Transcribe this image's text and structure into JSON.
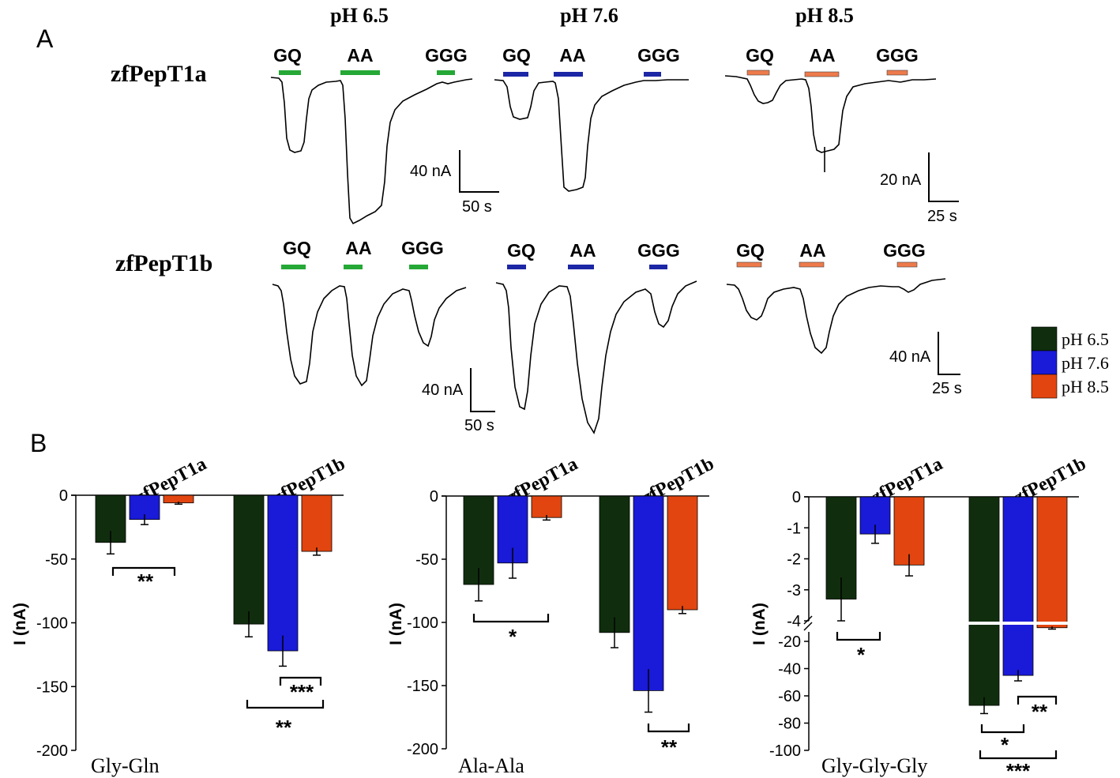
{
  "panel_a": {
    "label": "A",
    "ph_headers": [
      "pH 6.5",
      "pH 7.6",
      "pH 8.5"
    ],
    "rows": [
      {
        "name": "zfPepT1a",
        "groups": [
          {
            "ph": "pH 6.5",
            "peptides": [
              "GQ",
              "AA",
              "GGG"
            ],
            "scale_current": "40 nA",
            "scale_time": "50 s"
          },
          {
            "ph": "pH 7.6",
            "peptides": [
              "GQ",
              "AA",
              "GGG"
            ]
          },
          {
            "ph": "pH 8.5",
            "peptides": [
              "GQ",
              "AA",
              "GGG"
            ],
            "scale_current": "20 nA",
            "scale_time": "25 s"
          }
        ]
      },
      {
        "name": "zfPepT1b",
        "groups": [
          {
            "ph": "pH 6.5",
            "peptides": [
              "GQ",
              "AA",
              "GGG"
            ],
            "scale_current": "40 nA",
            "scale_time": "50 s"
          },
          {
            "ph": "pH 7.6",
            "peptides": [
              "GQ",
              "AA",
              "GGG"
            ]
          },
          {
            "ph": "pH 8.5",
            "peptides": [
              "GQ",
              "AA",
              "GGG"
            ],
            "scale_current": "40 nA",
            "scale_time": "25 s"
          }
        ]
      }
    ]
  },
  "legend": {
    "entries": [
      {
        "label": "pH 6.5",
        "color": "#102e0e"
      },
      {
        "label": "pH 7.6",
        "color": "#1a1ad9"
      },
      {
        "label": "pH 8.5",
        "color": "#e2450f"
      }
    ]
  },
  "panel_b": {
    "label": "B"
  },
  "colors": {
    "ph65": "#102e0e",
    "ph76": "#1a1ad9",
    "ph85": "#e2450f",
    "trace_green": "#25a836",
    "trace_blue": "#1c27a6",
    "trace_orange": "#ee7a4b"
  },
  "chart_data": [
    {
      "type": "bar",
      "title": "Gly-Gln",
      "ylabel": "I (nA)",
      "ylim": [
        -200,
        0
      ],
      "yticks": [
        0,
        -50,
        -100,
        -150,
        -200
      ],
      "categories": [
        "zfPepT1a",
        "zfPepT1b"
      ],
      "series": [
        {
          "name": "pH 6.5",
          "values": [
            -37,
            -101
          ],
          "errors": [
            9,
            10
          ]
        },
        {
          "name": "pH 7.6",
          "values": [
            -19,
            -122
          ],
          "errors": [
            4,
            12
          ]
        },
        {
          "name": "pH 8.5",
          "values": [
            -6,
            -44
          ],
          "errors": [
            1,
            3
          ]
        }
      ],
      "significance": [
        {
          "category": "zfPepT1a",
          "between": [
            "pH 6.5",
            "pH 8.5"
          ],
          "label": "**"
        },
        {
          "category": "zfPepT1b",
          "between": [
            "pH 7.6",
            "pH 8.5"
          ],
          "label": "***"
        },
        {
          "category": "zfPepT1b",
          "between": [
            "pH 6.5",
            "pH 8.5"
          ],
          "label": "**"
        }
      ]
    },
    {
      "type": "bar",
      "title": "Ala-Ala",
      "ylabel": "I (nA)",
      "ylim": [
        -200,
        0
      ],
      "yticks": [
        0,
        -50,
        -100,
        -150,
        -200
      ],
      "categories": [
        "zfPepT1a",
        "zfPepT1b"
      ],
      "series": [
        {
          "name": "pH 6.5",
          "values": [
            -70,
            -108
          ],
          "errors": [
            13,
            12
          ]
        },
        {
          "name": "pH 7.6",
          "values": [
            -53,
            -154
          ],
          "errors": [
            12,
            17
          ]
        },
        {
          "name": "pH 8.5",
          "values": [
            -17,
            -90
          ],
          "errors": [
            2,
            3
          ]
        }
      ],
      "significance": [
        {
          "category": "zfPepT1a",
          "between": [
            "pH 6.5",
            "pH 8.5"
          ],
          "label": "*"
        },
        {
          "category": "zfPepT1b",
          "between": [
            "pH 7.6",
            "pH 8.5"
          ],
          "label": "**"
        }
      ]
    },
    {
      "type": "bar",
      "title": "Gly-Gly-Gly",
      "ylabel": "I (nA)",
      "axis_break": {
        "upper_range": [
          -4,
          0
        ],
        "lower_range": [
          -100,
          -20
        ]
      },
      "yticks": [
        "0",
        "-1",
        "-2",
        "-3",
        "-4",
        "-20",
        "-40",
        "-60",
        "-80",
        "-100"
      ],
      "categories": [
        "zfPepT1a",
        "zfPepT1b"
      ],
      "series": [
        {
          "name": "pH 6.5",
          "values": [
            -3.3,
            -67
          ],
          "errors": [
            0.7,
            6
          ]
        },
        {
          "name": "pH 7.6",
          "values": [
            -1.2,
            -45
          ],
          "errors": [
            0.3,
            4
          ]
        },
        {
          "name": "pH 8.5",
          "values": [
            -2.2,
            -10
          ],
          "errors": [
            0.35,
            1
          ]
        }
      ],
      "significance": [
        {
          "category": "zfPepT1a",
          "between": [
            "pH 6.5",
            "pH 7.6"
          ],
          "label": "*"
        },
        {
          "category": "zfPepT1b",
          "between": [
            "pH 7.6",
            "pH 8.5"
          ],
          "label": "**"
        },
        {
          "category": "zfPepT1b",
          "between": [
            "pH 6.5",
            "pH 7.6"
          ],
          "label": "*"
        },
        {
          "category": "zfPepT1b",
          "between": [
            "pH 6.5",
            "pH 8.5"
          ],
          "label": "***"
        }
      ]
    }
  ]
}
